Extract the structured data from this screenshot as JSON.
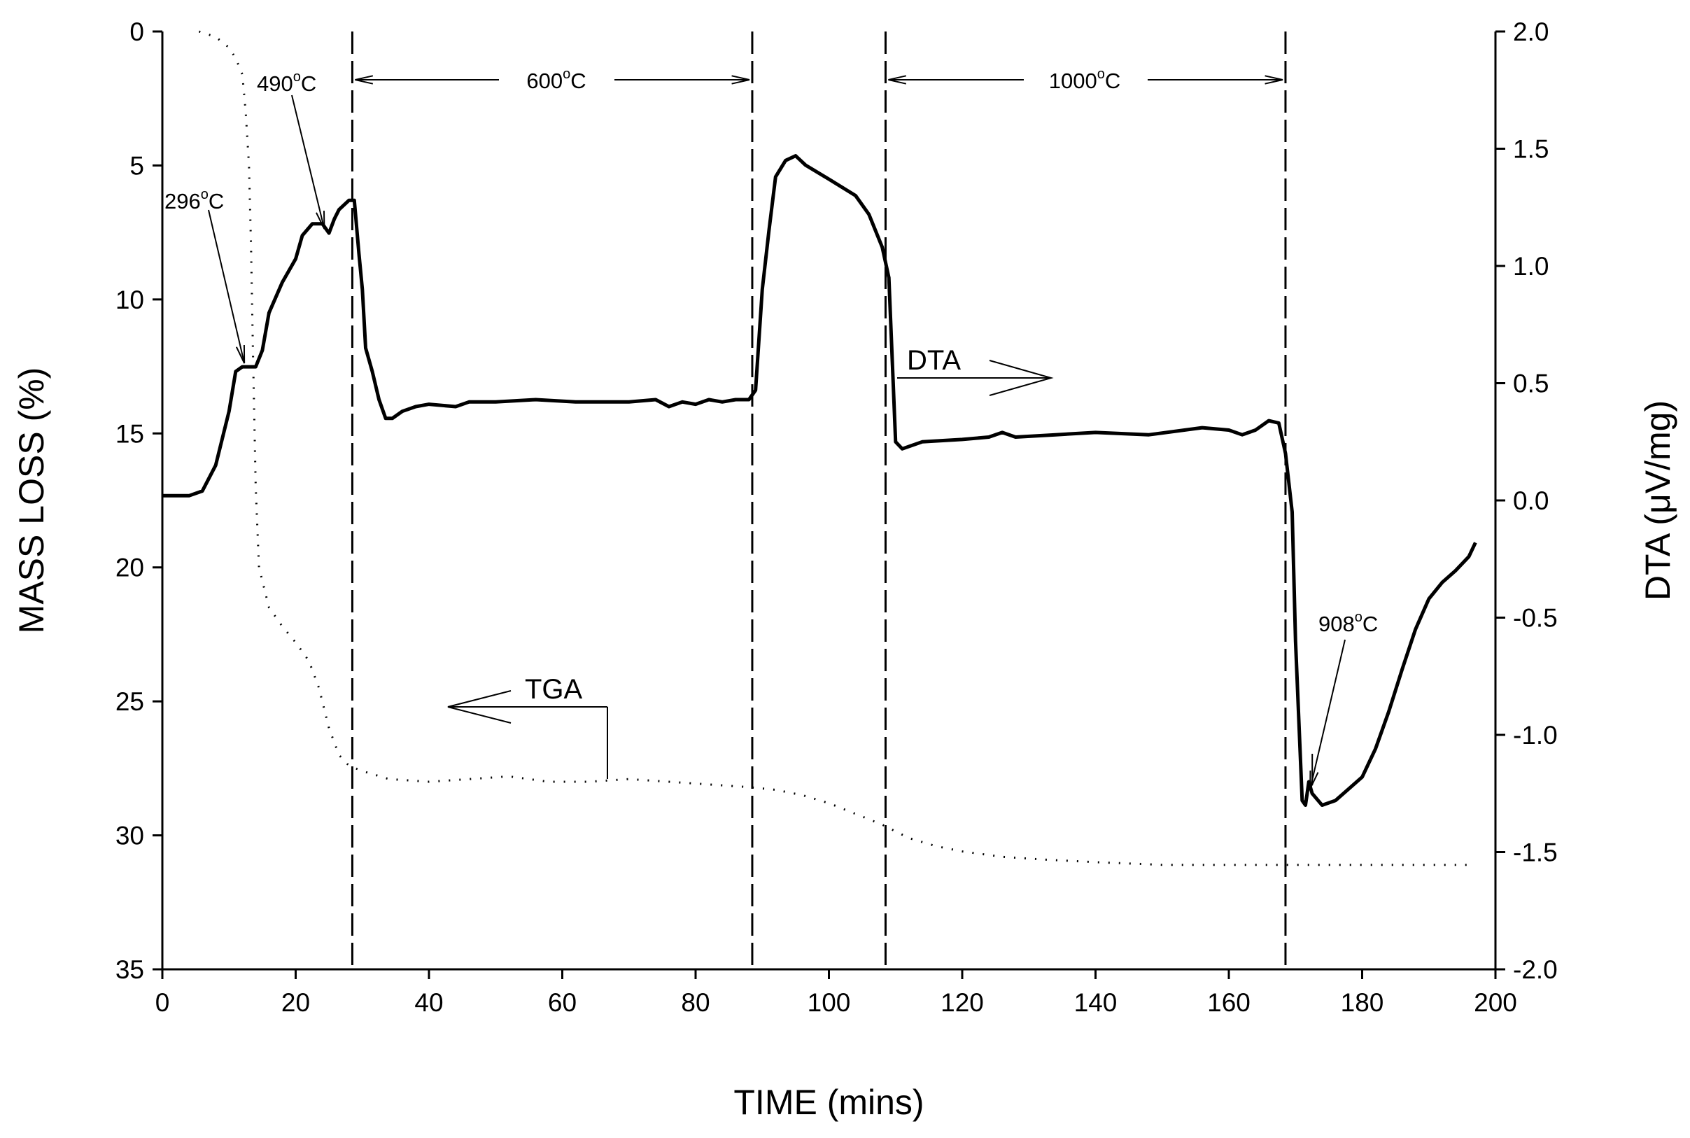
{
  "chart_data": {
    "type": "line",
    "title": "",
    "xlabel": "TIME (mins)",
    "ylabel_left": "MASS LOSS (%)",
    "ylabel_right": "DTA (μV/mg)",
    "xlim": [
      0,
      200
    ],
    "ylim_left": [
      0,
      35
    ],
    "ylim_left_inverted": true,
    "ylim_right": [
      -2.0,
      2.0
    ],
    "x_ticks": [
      "0",
      "20",
      "40",
      "60",
      "80",
      "100",
      "120",
      "140",
      "160",
      "180",
      "200"
    ],
    "y_left_ticks": [
      "0",
      "5",
      "10",
      "15",
      "20",
      "25",
      "30",
      "35"
    ],
    "y_right_ticks": [
      "2.0",
      "1.5",
      "1.0",
      "0.5",
      "0.0",
      "-0.5",
      "-1.0",
      "-1.5",
      "-2.0"
    ],
    "grid": false,
    "series": [
      {
        "name": "DTA",
        "axis": "right",
        "style": "solid",
        "points": [
          [
            0,
            0.02
          ],
          [
            4,
            0.02
          ],
          [
            6,
            0.04
          ],
          [
            8,
            0.15
          ],
          [
            10,
            0.38
          ],
          [
            11,
            0.55
          ],
          [
            12,
            0.57
          ],
          [
            14,
            0.57
          ],
          [
            15,
            0.64
          ],
          [
            16,
            0.8
          ],
          [
            18,
            0.93
          ],
          [
            20,
            1.03
          ],
          [
            21,
            1.13
          ],
          [
            22.5,
            1.18
          ],
          [
            24,
            1.18
          ],
          [
            25,
            1.14
          ],
          [
            25.8,
            1.2
          ],
          [
            26.5,
            1.24
          ],
          [
            28,
            1.28
          ],
          [
            28.8,
            1.28
          ],
          [
            29.5,
            1.05
          ],
          [
            30,
            0.9
          ],
          [
            30.5,
            0.65
          ],
          [
            31.5,
            0.55
          ],
          [
            32.5,
            0.43
          ],
          [
            33.5,
            0.35
          ],
          [
            34.5,
            0.35
          ],
          [
            36,
            0.38
          ],
          [
            38,
            0.4
          ],
          [
            40,
            0.41
          ],
          [
            44,
            0.4
          ],
          [
            46,
            0.42
          ],
          [
            50,
            0.42
          ],
          [
            56,
            0.43
          ],
          [
            62,
            0.42
          ],
          [
            70,
            0.42
          ],
          [
            74,
            0.43
          ],
          [
            76,
            0.4
          ],
          [
            78,
            0.42
          ],
          [
            80,
            0.41
          ],
          [
            82,
            0.43
          ],
          [
            84,
            0.42
          ],
          [
            86,
            0.43
          ],
          [
            88,
            0.43
          ],
          [
            89,
            0.47
          ],
          [
            90,
            0.9
          ],
          [
            91,
            1.15
          ],
          [
            92,
            1.38
          ],
          [
            93.5,
            1.45
          ],
          [
            95,
            1.47
          ],
          [
            96.5,
            1.43
          ],
          [
            100,
            1.37
          ],
          [
            104,
            1.3
          ],
          [
            106,
            1.22
          ],
          [
            108,
            1.08
          ],
          [
            109,
            0.95
          ],
          [
            109.5,
            0.6
          ],
          [
            110,
            0.25
          ],
          [
            111,
            0.22
          ],
          [
            114,
            0.25
          ],
          [
            120,
            0.26
          ],
          [
            124,
            0.27
          ],
          [
            126,
            0.29
          ],
          [
            128,
            0.27
          ],
          [
            134,
            0.28
          ],
          [
            140,
            0.29
          ],
          [
            148,
            0.28
          ],
          [
            156,
            0.31
          ],
          [
            160,
            0.3
          ],
          [
            162,
            0.28
          ],
          [
            164,
            0.3
          ],
          [
            166,
            0.34
          ],
          [
            167.5,
            0.33
          ],
          [
            168.5,
            0.2
          ],
          [
            169.5,
            -0.05
          ],
          [
            170,
            -0.6
          ],
          [
            171,
            -1.28
          ],
          [
            171.5,
            -1.3
          ],
          [
            172,
            -1.2
          ],
          [
            172.5,
            -1.25
          ],
          [
            174,
            -1.3
          ],
          [
            176,
            -1.28
          ],
          [
            178,
            -1.23
          ],
          [
            180,
            -1.18
          ],
          [
            182,
            -1.06
          ],
          [
            184,
            -0.9
          ],
          [
            186,
            -0.72
          ],
          [
            188,
            -0.55
          ],
          [
            190,
            -0.42
          ],
          [
            192,
            -0.35
          ],
          [
            194,
            -0.3
          ],
          [
            196,
            -0.24
          ],
          [
            197,
            -0.18
          ]
        ]
      },
      {
        "name": "TGA",
        "axis": "left",
        "style": "dotted",
        "points": [
          [
            5.5,
            0
          ],
          [
            8,
            0.2
          ],
          [
            10,
            0.6
          ],
          [
            11,
            1.0
          ],
          [
            12,
            1.6
          ],
          [
            12.5,
            3
          ],
          [
            13,
            5
          ],
          [
            13.3,
            8
          ],
          [
            13.6,
            12
          ],
          [
            14,
            17
          ],
          [
            14.5,
            20
          ],
          [
            16,
            21.5
          ],
          [
            18,
            22.2
          ],
          [
            20,
            22.8
          ],
          [
            22,
            23.5
          ],
          [
            23.5,
            24.5
          ],
          [
            25,
            26
          ],
          [
            26.5,
            27
          ],
          [
            28,
            27.4
          ],
          [
            30,
            27.6
          ],
          [
            34,
            27.9
          ],
          [
            40,
            28
          ],
          [
            46,
            27.9
          ],
          [
            52,
            27.8
          ],
          [
            58,
            28
          ],
          [
            64,
            28
          ],
          [
            70,
            27.9
          ],
          [
            76,
            28
          ],
          [
            82,
            28.1
          ],
          [
            88,
            28.2
          ],
          [
            92,
            28.3
          ],
          [
            96,
            28.5
          ],
          [
            100,
            28.8
          ],
          [
            104,
            29.2
          ],
          [
            108,
            29.6
          ],
          [
            112,
            30.1
          ],
          [
            116,
            30.4
          ],
          [
            120,
            30.6
          ],
          [
            126,
            30.8
          ],
          [
            132,
            30.9
          ],
          [
            140,
            31.0
          ],
          [
            150,
            31.1
          ],
          [
            160,
            31.1
          ],
          [
            168,
            31.1
          ],
          [
            176,
            31.1
          ],
          [
            186,
            31.1
          ],
          [
            197,
            31.1
          ]
        ]
      }
    ],
    "isothermal_boundaries_x": [
      28.5,
      88.5,
      108.5,
      168.5
    ],
    "annotations": {
      "t296": "296°C",
      "t490": "490°C",
      "t600": "600°C",
      "t1000": "1000°C",
      "t908": "908°C",
      "dta_label": "DTA",
      "tga_label": "TGA"
    }
  }
}
